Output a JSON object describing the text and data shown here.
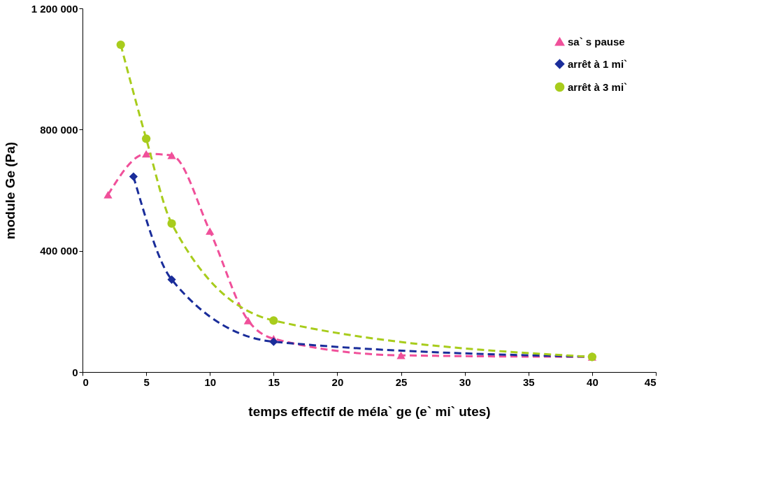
{
  "chart_data": {
    "type": "line",
    "xlabel": "temps effectif de méla` ge (e`  mi` utes)",
    "ylabel": "module Ge (Pa)",
    "xlim": [
      0,
      45
    ],
    "xticks": [
      0,
      5,
      10,
      15,
      20,
      25,
      30,
      35,
      40,
      45
    ],
    "ylim": [
      0,
      1200000
    ],
    "yticks": [
      0,
      {
        "value": 400000,
        "label": "400 000"
      },
      {
        "value": 800000,
        "label": "800 000"
      },
      {
        "value": 1200000,
        "label": "1 200 000"
      }
    ],
    "grid": false,
    "legend": "top right",
    "line_style": "dashed",
    "series": [
      {
        "name": "sa` s pause",
        "color": "#f0509a",
        "marker": "triangle",
        "x": [
          2,
          5,
          7,
          10,
          13,
          15,
          25,
          40
        ],
        "values": [
          585000,
          720000,
          715000,
          465000,
          170000,
          110000,
          55000,
          50000
        ]
      },
      {
        "name": "arrêt à 1 mi`",
        "color": "#1a2d9a",
        "marker": "diamond",
        "x": [
          4,
          7,
          15,
          40
        ],
        "values": [
          645000,
          305000,
          100000,
          50000
        ]
      },
      {
        "name": "arrêt à 3 mi`",
        "color": "#a8cc1c",
        "marker": "circle",
        "x": [
          3,
          5,
          7,
          15,
          40
        ],
        "values": [
          1080000,
          770000,
          490000,
          170000,
          50000
        ]
      }
    ]
  }
}
